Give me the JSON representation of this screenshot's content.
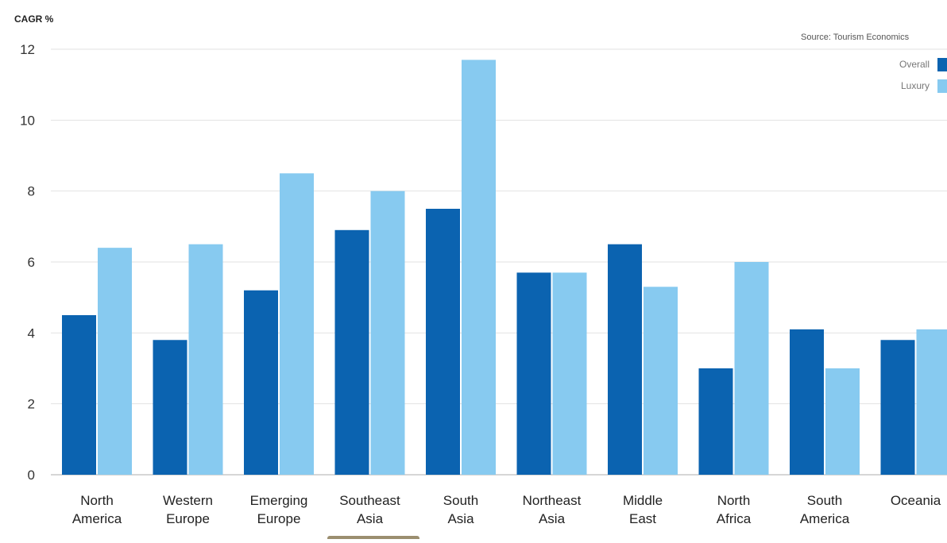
{
  "chart_data": {
    "type": "bar",
    "title": "",
    "ylabel": "CAGR %",
    "xlabel": "",
    "source": "Source: Tourism Economics",
    "ylim": [
      0,
      12
    ],
    "yticks": [
      "0",
      "2",
      "4",
      "6",
      "8",
      "10",
      "12"
    ],
    "grid": true,
    "legend_position": "top-right",
    "categories": [
      [
        "North",
        "America"
      ],
      [
        "Western",
        "Europe"
      ],
      [
        "Emerging",
        "Europe"
      ],
      [
        "Southeast",
        "Asia"
      ],
      [
        "South",
        "Asia"
      ],
      [
        "Northeast",
        "Asia"
      ],
      [
        "Middle",
        "East"
      ],
      [
        "North",
        "Africa"
      ],
      [
        "South",
        "America"
      ],
      [
        "Oceania"
      ]
    ],
    "series": [
      {
        "name": "Overall",
        "color": "#0b63b0",
        "values": [
          4.5,
          3.8,
          5.2,
          6.9,
          7.5,
          5.7,
          6.5,
          3.0,
          4.1,
          3.8
        ]
      },
      {
        "name": "Luxury",
        "color": "#87caf0",
        "values": [
          6.4,
          6.5,
          8.5,
          8.0,
          11.7,
          5.7,
          5.3,
          6.0,
          3.0,
          4.1
        ]
      }
    ]
  }
}
